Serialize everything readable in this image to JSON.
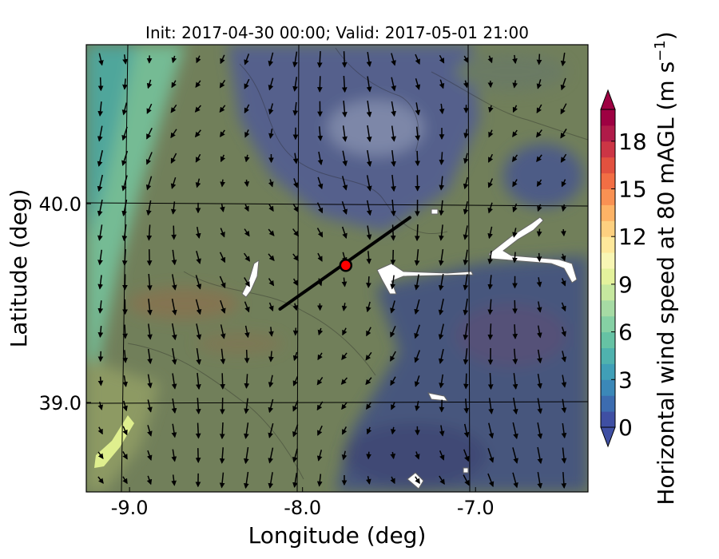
{
  "chart_data": {
    "type": "heatmap",
    "title": "Init: 2017-04-30 00:00; Valid: 2017-05-01 21:00",
    "xlabel": "Longitude (deg)",
    "ylabel": "Latitude (deg)",
    "xlim": [
      -9.25,
      -6.35
    ],
    "ylim": [
      38.55,
      40.8
    ],
    "x_ticks": [
      -9.0,
      -8.0,
      -7.0
    ],
    "x_tick_labels": [
      "-9.0",
      "-8.0",
      "-7.0"
    ],
    "y_ticks": [
      39.0,
      40.0
    ],
    "y_tick_labels": [
      "39.0",
      "40.0"
    ],
    "grid": true,
    "colorbar": {
      "label_main": "Horizontal wind speed at 80 mAGL (m s",
      "label_exp": "−1",
      "label_close": ")",
      "range": [
        0,
        20
      ],
      "step": 1,
      "ticks": [
        0,
        3,
        6,
        9,
        12,
        15,
        18
      ],
      "tick_labels": [
        "0",
        "3",
        "6",
        "9",
        "12",
        "15",
        "18"
      ],
      "colors": [
        "#3f4fa3",
        "#3c6cb0",
        "#3b88b8",
        "#409fb7",
        "#4fb2ae",
        "#66c2a4",
        "#85d0a4",
        "#a6dba4",
        "#c6e89f",
        "#e4f29c",
        "#f8f6b4",
        "#fee89b",
        "#fdd080",
        "#fdb366",
        "#f99153",
        "#f26e44",
        "#e2513f",
        "#cc3545",
        "#b01b49",
        "#9e0142"
      ],
      "extend": "both"
    },
    "transect": {
      "start": [
        -8.13,
        39.47
      ],
      "end": [
        -7.38,
        39.93
      ]
    },
    "site_marker": {
      "lon": -7.75,
      "lat": 39.69,
      "color": "#ff0000"
    }
  }
}
